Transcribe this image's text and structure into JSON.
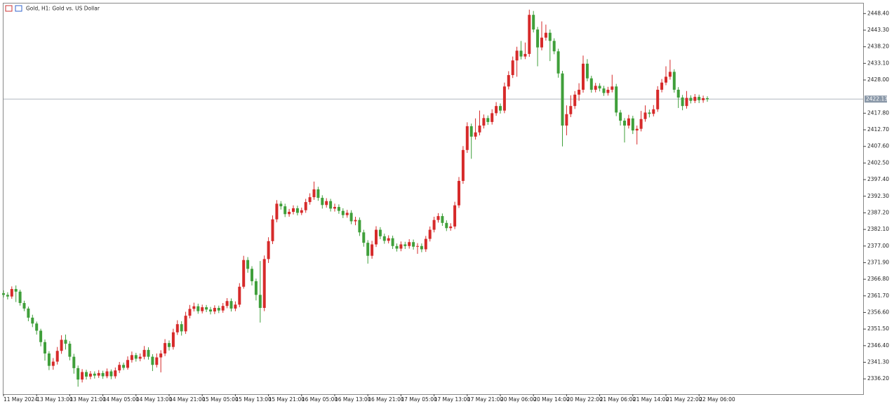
{
  "chart_data": {
    "type": "candlestick",
    "title": "Gold, H1:  Gold vs. US Dollar",
    "up_color": "#d62a2a",
    "down_color": "#3f9f3a",
    "categories": [
      "11 May 2024",
      null,
      null,
      null,
      null,
      null,
      null,
      null,
      "13 May 13:00",
      null,
      null,
      null,
      null,
      null,
      null,
      null,
      "13 May 21:00",
      null,
      null,
      null,
      null,
      null,
      null,
      null,
      "14 May 05:00",
      null,
      null,
      null,
      null,
      null,
      null,
      null,
      "14 May 13:00",
      null,
      null,
      null,
      null,
      null,
      null,
      null,
      "14 May 21:00",
      null,
      null,
      null,
      null,
      null,
      null,
      null,
      "15 May 05:00",
      null,
      null,
      null,
      null,
      null,
      null,
      null,
      "15 May 13:00",
      null,
      null,
      null,
      null,
      null,
      null,
      null,
      "15 May 21:00",
      null,
      null,
      null,
      null,
      null,
      null,
      null,
      "16 May 05:00",
      null,
      null,
      null,
      null,
      null,
      null,
      null,
      "16 May 13:00",
      null,
      null,
      null,
      null,
      null,
      null,
      null,
      "16 May 21:00",
      null,
      null,
      null,
      null,
      null,
      null,
      null,
      "17 May 05:00",
      null,
      null,
      null,
      null,
      null,
      null,
      null,
      "17 May 13:00",
      null,
      null,
      null,
      null,
      null,
      null,
      null,
      "17 May 21:00",
      null,
      null,
      null,
      null,
      null,
      null,
      null,
      "20 May 06:00",
      null,
      null,
      null,
      null,
      null,
      null,
      null,
      "20 May 14:00",
      null,
      null,
      null,
      null,
      null,
      null,
      null,
      "20 May 22:00",
      null,
      null,
      null,
      null,
      null,
      null,
      null,
      "21 May 06:00",
      null,
      null,
      null,
      null,
      null,
      null,
      null,
      "21 May 14:00",
      null,
      null,
      null,
      null,
      null,
      null,
      null,
      "21 May 22:00",
      null,
      null,
      null,
      null,
      null,
      null,
      null,
      "22 May 06:00",
      null,
      null
    ],
    "open": [
      2362.5,
      2362.0,
      2361.5,
      2363.8,
      2363.0,
      2359.5,
      2357.8,
      2355.0,
      2353.2,
      2351.0,
      2347.5,
      2344.0,
      2340.2,
      2341.5,
      2344.8,
      2348.2,
      2347.0,
      2343.0,
      2339.5,
      2336.0,
      2338.3,
      2336.9,
      2337.8,
      2337.2,
      2338.0,
      2337.0,
      2338.5,
      2337.0,
      2338.8,
      2340.5,
      2339.6,
      2342.0,
      2343.5,
      2342.4,
      2343.0,
      2345.1,
      2343.0,
      2340.5,
      2342.8,
      2344.0,
      2347.2,
      2346.0,
      2350.5,
      2353.0,
      2350.8,
      2355.6,
      2357.7,
      2358.5,
      2357.0,
      2358.2,
      2357.5,
      2356.9,
      2358.0,
      2357.2,
      2358.6,
      2360.1,
      2357.8,
      2359.0,
      2364.5,
      2372.7,
      2370.0,
      2366.2,
      2362.0,
      2358.0,
      2373.0,
      2378.5,
      2385.2,
      2390.0,
      2389.2,
      2386.8,
      2387.5,
      2388.6,
      2387.2,
      2388.0,
      2390.5,
      2392.0,
      2394.4,
      2391.8,
      2389.6,
      2390.8,
      2388.5,
      2389.0,
      2387.8,
      2386.5,
      2387.2,
      2384.6,
      2385.0,
      2381.2,
      2378.0,
      2374.0,
      2377.5,
      2382.0,
      2380.0,
      2378.6,
      2379.4,
      2377.0,
      2376.2,
      2377.5,
      2377.0,
      2378.2,
      2376.8,
      2377.0,
      2376.0,
      2379.2,
      2382.0,
      2385.0,
      2386.2,
      2384.1,
      2382.5,
      2383.0,
      2389.5,
      2397.0,
      2406.5,
      2413.8,
      2410.6,
      2411.9,
      2414.0,
      2416.3,
      2415.1,
      2417.8,
      2420.0,
      2418.6,
      2426.0,
      2429.5,
      2434.0,
      2437.0,
      2435.2,
      2436.0,
      2448.0,
      2443.5,
      2438.0,
      2441.0,
      2442.5,
      2440.0,
      2436.8,
      2430.0,
      2414.0,
      2417.5,
      2420.0,
      2423.5,
      2425.0,
      2433.0,
      2428.5,
      2425.0,
      2426.2,
      2425.4,
      2424.0,
      2425.0,
      2426.0,
      2418.0,
      2415.5,
      2414.0,
      2416.2,
      2412.5,
      2413.0,
      2416.0,
      2418.0,
      2417.6,
      2419.0,
      2425.0,
      2427.2,
      2429.0,
      2430.5,
      2425.0,
      2422.6,
      2420.0,
      2422.5,
      2421.6,
      2422.8,
      2421.8,
      2422.4
    ],
    "high": [
      2363.4,
      2362.8,
      2364.6,
      2364.9,
      2363.6,
      2360.2,
      2358.4,
      2355.9,
      2353.8,
      2351.6,
      2348.3,
      2344.7,
      2342.6,
      2346.0,
      2349.6,
      2349.8,
      2347.8,
      2343.9,
      2340.3,
      2339.2,
      2339.0,
      2338.6,
      2338.5,
      2338.9,
      2338.7,
      2339.4,
      2339.1,
      2339.7,
      2341.4,
      2341.2,
      2343.1,
      2344.6,
      2344.2,
      2344.0,
      2346.3,
      2345.9,
      2343.8,
      2344.0,
      2345.0,
      2348.4,
      2348.0,
      2351.6,
      2354.2,
      2353.9,
      2356.8,
      2358.9,
      2359.6,
      2359.3,
      2359.0,
      2358.9,
      2358.3,
      2358.8,
      2358.7,
      2359.5,
      2361.0,
      2360.9,
      2360.0,
      2365.6,
      2374.0,
      2373.6,
      2370.8,
      2367.0,
      2372.4,
      2374.1,
      2379.7,
      2386.4,
      2391.1,
      2390.8,
      2390.0,
      2388.4,
      2389.5,
      2389.4,
      2388.8,
      2391.5,
      2393.2,
      2396.8,
      2395.2,
      2392.6,
      2391.7,
      2391.5,
      2390.0,
      2389.8,
      2388.6,
      2388.1,
      2388.0,
      2386.0,
      2385.8,
      2382.0,
      2378.8,
      2378.6,
      2383.1,
      2382.8,
      2380.8,
      2380.3,
      2380.2,
      2377.8,
      2378.4,
      2378.3,
      2379.1,
      2379.0,
      2377.9,
      2377.8,
      2380.1,
      2383.0,
      2386.0,
      2387.1,
      2387.0,
      2384.9,
      2384.0,
      2390.6,
      2398.2,
      2407.7,
      2415.0,
      2414.6,
      2416.2,
      2418.6,
      2417.4,
      2417.1,
      2419.0,
      2421.2,
      2420.8,
      2427.2,
      2430.7,
      2435.2,
      2438.2,
      2440.0,
      2439.5,
      2449.6,
      2449.2,
      2444.3,
      2446.0,
      2445.0,
      2443.5,
      2440.8,
      2437.6,
      2430.8,
      2420.2,
      2423.3,
      2424.6,
      2427.0,
      2435.5,
      2434.4,
      2429.3,
      2427.1,
      2427.0,
      2426.2,
      2425.9,
      2429.6,
      2426.8,
      2418.8,
      2416.3,
      2417.3,
      2417.0,
      2414.0,
      2418.5,
      2420.2,
      2418.9,
      2420.3,
      2426.1,
      2428.3,
      2432.2,
      2434.2,
      2431.3,
      2425.8,
      2423.4,
      2424.6,
      2423.3,
      2423.7,
      2423.5,
      2423.2,
      2423.0
    ],
    "low": [
      2361.2,
      2360.6,
      2360.8,
      2359.8,
      2358.7,
      2357.0,
      2353.9,
      2352.1,
      2349.8,
      2346.2,
      2341.8,
      2338.9,
      2339.0,
      2340.6,
      2343.9,
      2345.2,
      2341.9,
      2337.8,
      2333.8,
      2335.1,
      2336.0,
      2336.1,
      2336.3,
      2336.5,
      2336.2,
      2336.4,
      2336.1,
      2336.3,
      2338.0,
      2338.9,
      2339.0,
      2341.2,
      2341.5,
      2341.6,
      2342.2,
      2342.1,
      2338.6,
      2339.7,
      2338.2,
      2343.2,
      2344.9,
      2345.2,
      2349.7,
      2349.5,
      2350.0,
      2354.8,
      2356.9,
      2356.2,
      2356.3,
      2356.7,
      2356.0,
      2356.1,
      2356.4,
      2356.5,
      2357.9,
      2356.9,
      2357.0,
      2358.2,
      2363.9,
      2368.8,
      2364.9,
      2360.3,
      2353.5,
      2357.0,
      2371.8,
      2377.6,
      2384.3,
      2388.2,
      2385.9,
      2386.0,
      2386.7,
      2386.4,
      2386.5,
      2387.2,
      2389.7,
      2391.2,
      2390.9,
      2388.5,
      2388.8,
      2387.6,
      2387.6,
      2386.9,
      2385.6,
      2385.7,
      2383.7,
      2383.4,
      2380.1,
      2376.8,
      2371.6,
      2373.1,
      2376.7,
      2379.1,
      2377.7,
      2377.8,
      2376.1,
      2375.3,
      2375.4,
      2376.1,
      2376.2,
      2375.9,
      2374.6,
      2375.1,
      2375.2,
      2378.4,
      2381.2,
      2384.2,
      2383.2,
      2381.6,
      2381.7,
      2382.2,
      2388.7,
      2396.1,
      2405.6,
      2403.8,
      2409.7,
      2411.0,
      2413.1,
      2414.2,
      2414.3,
      2417.0,
      2417.7,
      2417.8,
      2425.1,
      2428.6,
      2429.0,
      2434.3,
      2434.4,
      2435.1,
      2442.6,
      2432.2,
      2437.1,
      2440.1,
      2433.8,
      2435.9,
      2428.7,
      2407.6,
      2411.0,
      2416.6,
      2419.1,
      2421.6,
      2424.1,
      2427.6,
      2424.1,
      2424.2,
      2424.5,
      2423.1,
      2423.2,
      2424.2,
      2416.9,
      2414.0,
      2408.8,
      2413.1,
      2411.4,
      2408.2,
      2412.2,
      2415.2,
      2416.5,
      2416.8,
      2418.2,
      2424.2,
      2426.4,
      2428.1,
      2424.1,
      2419.4,
      2418.7,
      2419.2,
      2420.8,
      2420.9,
      2420.9,
      2421.0,
      2421.3
    ],
    "close": [
      2362.0,
      2361.5,
      2363.8,
      2363.0,
      2359.5,
      2357.8,
      2355.0,
      2353.2,
      2351.0,
      2347.5,
      2344.0,
      2340.2,
      2341.5,
      2344.8,
      2348.2,
      2347.0,
      2343.0,
      2339.5,
      2336.0,
      2338.3,
      2336.9,
      2337.8,
      2337.2,
      2338.0,
      2337.0,
      2338.5,
      2337.0,
      2338.8,
      2340.5,
      2339.6,
      2342.0,
      2343.5,
      2342.4,
      2343.0,
      2345.1,
      2343.0,
      2340.5,
      2342.8,
      2344.0,
      2347.2,
      2346.0,
      2350.5,
      2353.0,
      2350.8,
      2355.6,
      2357.7,
      2358.5,
      2357.0,
      2358.2,
      2357.5,
      2356.9,
      2358.0,
      2357.2,
      2358.6,
      2360.1,
      2357.8,
      2359.0,
      2364.5,
      2372.7,
      2370.0,
      2366.2,
      2362.0,
      2358.0,
      2373.0,
      2378.5,
      2385.2,
      2390.0,
      2389.2,
      2386.8,
      2387.5,
      2388.6,
      2387.2,
      2388.0,
      2390.5,
      2392.0,
      2394.4,
      2391.8,
      2389.6,
      2390.8,
      2388.5,
      2389.0,
      2387.8,
      2386.5,
      2387.2,
      2384.6,
      2385.0,
      2381.2,
      2378.0,
      2374.0,
      2377.5,
      2382.0,
      2380.0,
      2378.6,
      2379.4,
      2377.0,
      2376.2,
      2377.5,
      2377.0,
      2378.2,
      2376.8,
      2377.0,
      2376.0,
      2379.2,
      2382.0,
      2385.0,
      2386.2,
      2384.1,
      2382.5,
      2383.0,
      2389.5,
      2397.0,
      2406.5,
      2413.8,
      2410.6,
      2411.9,
      2414.0,
      2416.3,
      2415.1,
      2417.8,
      2420.0,
      2418.6,
      2426.0,
      2429.5,
      2434.0,
      2437.0,
      2435.2,
      2436.0,
      2448.0,
      2443.5,
      2438.0,
      2441.0,
      2442.5,
      2440.0,
      2436.8,
      2430.0,
      2414.0,
      2417.5,
      2420.0,
      2423.5,
      2425.0,
      2433.0,
      2428.5,
      2425.0,
      2426.2,
      2425.4,
      2424.0,
      2425.0,
      2426.0,
      2418.0,
      2415.5,
      2414.0,
      2416.2,
      2412.5,
      2413.0,
      2416.0,
      2418.0,
      2417.6,
      2419.0,
      2425.0,
      2427.2,
      2429.0,
      2430.5,
      2425.0,
      2422.6,
      2420.0,
      2422.5,
      2421.6,
      2422.8,
      2421.8,
      2422.4,
      2422.1
    ],
    "ylim": [
      2331.5,
      2451.7
    ],
    "yticks": [
      {
        "value": 2336.2,
        "label": "2336.20"
      },
      {
        "value": 2341.3,
        "label": "2341.30"
      },
      {
        "value": 2346.4,
        "label": "2346.40"
      },
      {
        "value": 2351.5,
        "label": "2351.50"
      },
      {
        "value": 2356.6,
        "label": "2356.60"
      },
      {
        "value": 2361.7,
        "label": "2361.70"
      },
      {
        "value": 2366.8,
        "label": "2366.80"
      },
      {
        "value": 2371.9,
        "label": "2371.90"
      },
      {
        "value": 2377,
        "label": "2377.00"
      },
      {
        "value": 2382.1,
        "label": "2382.10"
      },
      {
        "value": 2387.2,
        "label": "2387.20"
      },
      {
        "value": 2392.3,
        "label": "2392.30"
      },
      {
        "value": 2397.4,
        "label": "2397.40"
      },
      {
        "value": 2402.5,
        "label": "2402.50"
      },
      {
        "value": 2407.6,
        "label": "2407.60"
      },
      {
        "value": 2412.7,
        "label": "2412.70"
      },
      {
        "value": 2417.8,
        "label": "2417.80"
      },
      {
        "value": 2428,
        "label": "2428.00"
      },
      {
        "value": 2433.1,
        "label": "2433.10"
      },
      {
        "value": 2438.2,
        "label": "2438.20"
      },
      {
        "value": 2443.3,
        "label": "2443.30"
      },
      {
        "value": 2448.4,
        "label": "2448.40"
      }
    ],
    "current_price": {
      "value": 2422.13,
      "label": "2422.13"
    }
  }
}
